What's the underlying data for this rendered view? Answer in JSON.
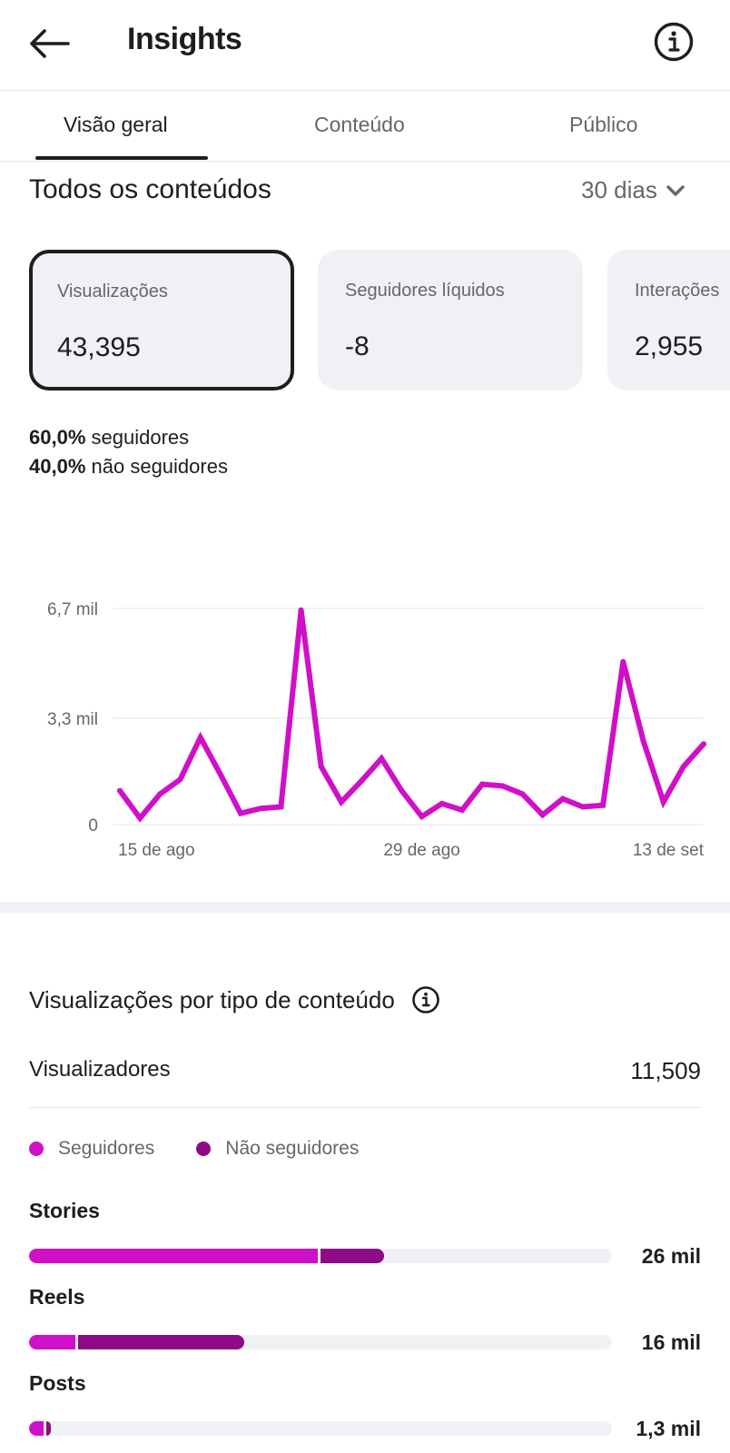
{
  "header": {
    "title": "Insights",
    "back_icon": "arrow-left-icon",
    "info_icon": "info-icon"
  },
  "tabs": [
    {
      "label": "Visão geral",
      "active": true
    },
    {
      "label": "Conteúdo",
      "active": false
    },
    {
      "label": "Público",
      "active": false
    }
  ],
  "overview": {
    "title": "Todos os conteúdos",
    "period": "30 dias",
    "cards": [
      {
        "label": "Visualizações",
        "value": "43,395",
        "selected": true
      },
      {
        "label": "Seguidores líquidos",
        "value": "-8",
        "selected": false
      },
      {
        "label": "Interações",
        "value": "2,955",
        "selected": false
      }
    ],
    "split": {
      "followers_pct": "60,0%",
      "followers_label": "seguidores",
      "nonfollowers_pct": "40,0%",
      "nonfollowers_label": "não seguidores"
    }
  },
  "chart_data": {
    "type": "line",
    "color": "#d010c8",
    "y_ticks": [
      "0",
      "3,3 mil",
      "6,7 mil"
    ],
    "y_tick_values": [
      0,
      3300,
      6700
    ],
    "ylim": [
      0,
      6700
    ],
    "x_ticks": [
      "15 de ago",
      "29 de ago",
      "13 de set"
    ],
    "x_tick_index": [
      1,
      15,
      29
    ],
    "values": [
      1050,
      200,
      950,
      1400,
      2700,
      1550,
      350,
      500,
      550,
      6650,
      1800,
      700,
      1350,
      2050,
      1050,
      250,
      650,
      450,
      1250,
      1200,
      950,
      300,
      800,
      550,
      600,
      5050,
      2600,
      700,
      1800,
      2500
    ]
  },
  "content_type": {
    "title": "Visualizações por tipo de conteúdo",
    "info_icon": "info-icon",
    "viewers_label": "Visualizadores",
    "viewers_value": "11,509",
    "legend": [
      {
        "label": "Seguidores",
        "color": "#d010c8"
      },
      {
        "label": "Não seguidores",
        "color": "#8e0a86"
      }
    ],
    "rows": [
      {
        "label": "Stories",
        "value": "26 mil",
        "followers": 0.495,
        "nonfollowers": 0.11
      },
      {
        "label": "Reels",
        "value": "16 mil",
        "followers": 0.08,
        "nonfollowers": 0.285
      },
      {
        "label": "Posts",
        "value": "1,3 mil",
        "followers": 0.025,
        "nonfollowers": 0.007
      }
    ]
  }
}
